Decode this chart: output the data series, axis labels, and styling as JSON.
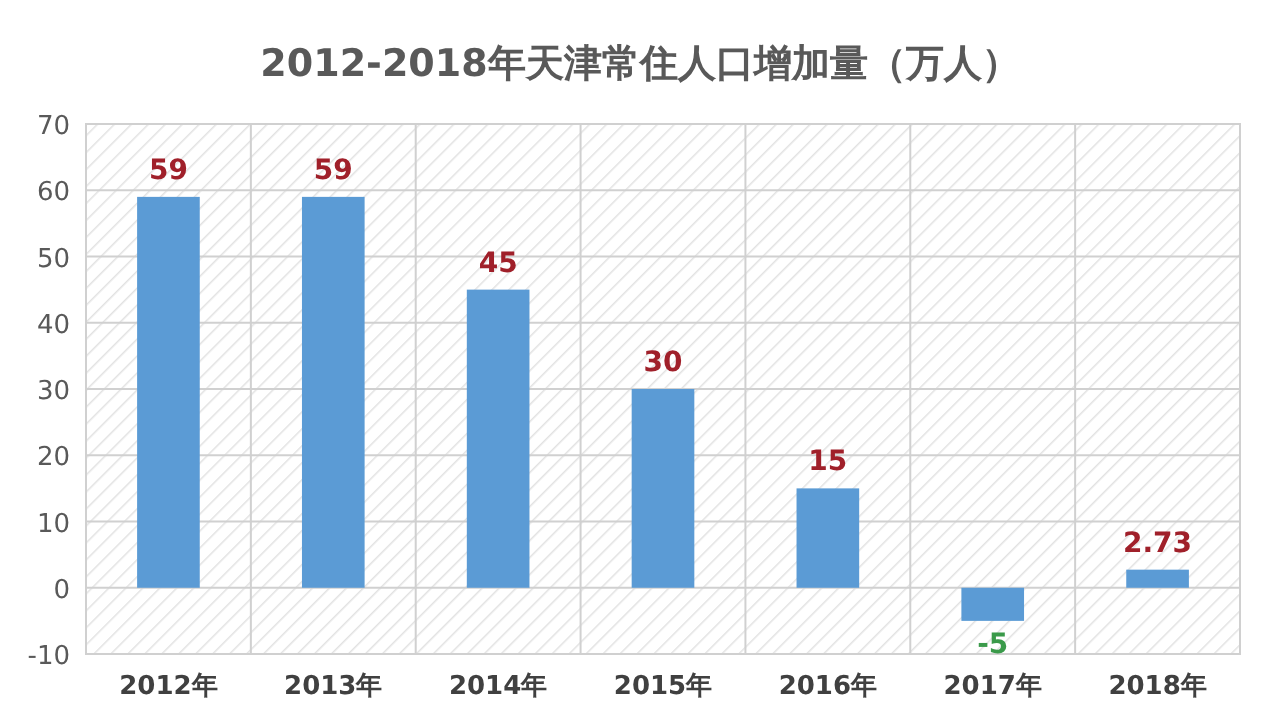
{
  "chart_data": {
    "type": "bar",
    "title": "2012-2018年天津常住人口增加量（万人）",
    "categories": [
      "2012年",
      "2013年",
      "2014年",
      "2015年",
      "2016年",
      "2017年",
      "2018年"
    ],
    "values": [
      59,
      59,
      45,
      30,
      15,
      -5,
      2.73
    ],
    "color": "#5b9bd5",
    "value_labels": [
      "59",
      "59",
      "45",
      "30",
      "15",
      "-5",
      "2.73"
    ],
    "ylim": [
      -10,
      70
    ],
    "yticks": [
      -10,
      0,
      10,
      20,
      30,
      40,
      50,
      60,
      70
    ],
    "grid": true
  }
}
